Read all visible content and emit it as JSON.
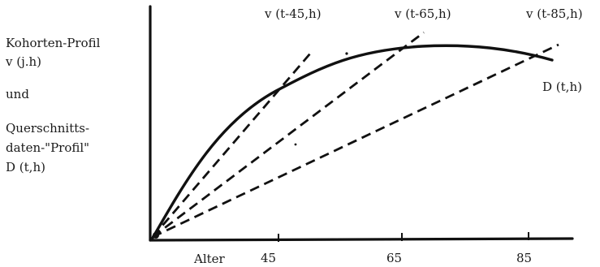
{
  "left_labels": {
    "line1": "Kohorten-Profil",
    "line2": "v (j.h)",
    "line3": "und",
    "line4": "Querschnitts-",
    "line5": "daten-\"Profil\"",
    "line6": "D (t,h)"
  },
  "top_labels": {
    "v45": "v (t-45,h)",
    "v65": "v (t-65,h)",
    "v85": "v (t-85,h)"
  },
  "curve_label": "D (t,h)",
  "x_axis": {
    "label": "Alter",
    "ticks": [
      "45",
      "65",
      "85"
    ]
  }
}
